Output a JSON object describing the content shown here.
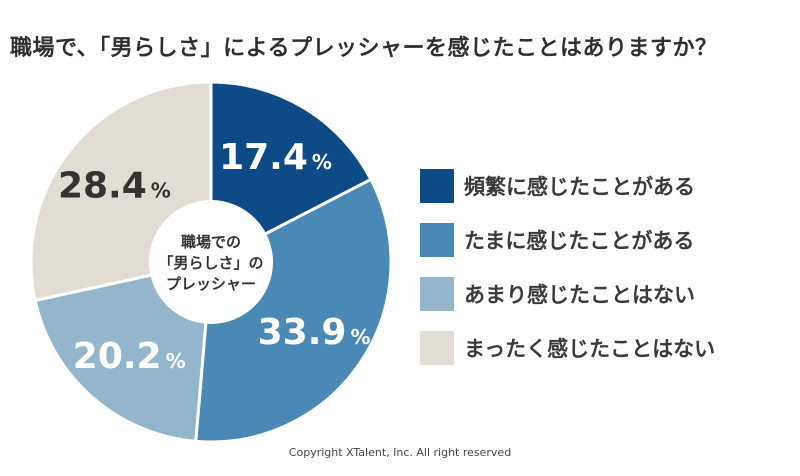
{
  "title": "職場で、「男らしさ」によるプレッシャーを感じたことはありますか？",
  "center_label": [
    "職場での",
    "「男らしさ」の",
    "プレッシャー"
  ],
  "chart_data": {
    "type": "pie",
    "donut": true,
    "unit": "%",
    "categories": [
      "頻繁に感じたことがある",
      "たまに感じたことがある",
      "あまり感じたことはない",
      "まったく感じたことはない"
    ],
    "values": [
      17.4,
      33.9,
      20.2,
      28.4
    ],
    "value_labels": [
      "17.4",
      "33.9",
      "20.2",
      "28.4"
    ],
    "colors": [
      "#0d4a86",
      "#4a88b6",
      "#93b6cd",
      "#e2ddd2"
    ],
    "label_colors": [
      "#ffffff",
      "#ffffff",
      "#ffffff",
      "#333333"
    ],
    "legend_position": "right"
  },
  "copyright": "Copyright XTalent, Inc. All right reserved"
}
